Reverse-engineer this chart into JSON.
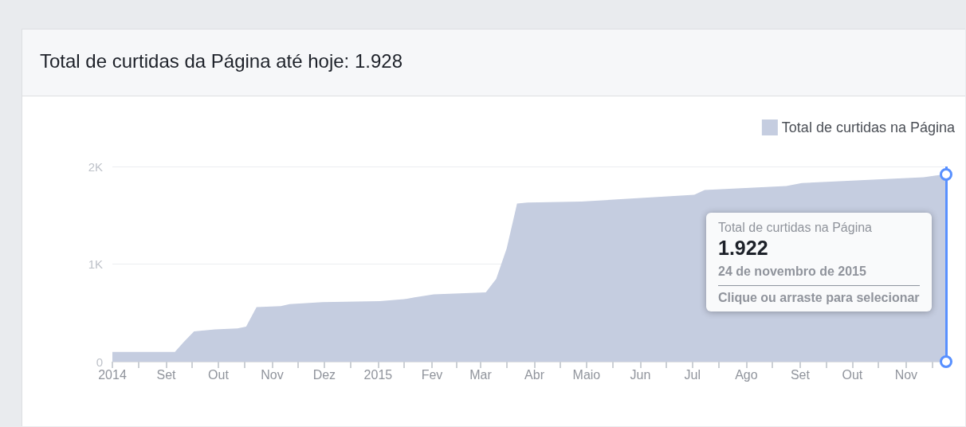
{
  "chart_data": {
    "type": "area",
    "title": "Total de curtidas da Página até hoje: 1.928",
    "x": [
      "2014-08-01",
      "2014-09-06",
      "2014-09-11",
      "2014-09-17",
      "2014-09-29",
      "2014-10-12",
      "2014-10-17",
      "2014-10-23",
      "2014-11-06",
      "2014-11-11",
      "2014-11-30",
      "2015-01-02",
      "2015-01-16",
      "2015-01-22",
      "2015-02-02",
      "2015-03-04",
      "2015-03-10",
      "2015-03-16",
      "2015-03-22",
      "2015-03-28",
      "2015-04-28",
      "2015-07-02",
      "2015-07-08",
      "2015-08-24",
      "2015-09-02",
      "2015-11-11",
      "2015-11-24"
    ],
    "series": [
      {
        "name": "Total de curtidas na Página",
        "color": "#c5cde0",
        "values": [
          100,
          100,
          200,
          310,
          330,
          340,
          360,
          560,
          570,
          590,
          610,
          620,
          640,
          660,
          690,
          710,
          850,
          1160,
          1620,
          1630,
          1640,
          1710,
          1760,
          1800,
          1830,
          1890,
          1922
        ]
      }
    ],
    "xlim": [
      "2014-08-01",
      "2015-11-24"
    ],
    "xticks": [
      {
        "value": "2014-08-01",
        "label": "2014"
      },
      {
        "value": "2014-08-16",
        "label": null
      },
      {
        "value": "2014-09-01",
        "label": "Set"
      },
      {
        "value": "2014-09-16",
        "label": null
      },
      {
        "value": "2014-10-01",
        "label": "Out"
      },
      {
        "value": "2014-10-16",
        "label": null
      },
      {
        "value": "2014-11-01",
        "label": "Nov"
      },
      {
        "value": "2014-11-16",
        "label": null
      },
      {
        "value": "2014-12-01",
        "label": "Dez"
      },
      {
        "value": "2014-12-16",
        "label": null
      },
      {
        "value": "2015-01-01",
        "label": "2015"
      },
      {
        "value": "2015-01-16",
        "label": null
      },
      {
        "value": "2015-02-01",
        "label": "Fev"
      },
      {
        "value": "2015-02-15",
        "label": null
      },
      {
        "value": "2015-03-01",
        "label": "Mar"
      },
      {
        "value": "2015-03-16",
        "label": null
      },
      {
        "value": "2015-04-01",
        "label": "Abr"
      },
      {
        "value": "2015-04-16",
        "label": null
      },
      {
        "value": "2015-05-01",
        "label": "Maio"
      },
      {
        "value": "2015-05-16",
        "label": null
      },
      {
        "value": "2015-06-01",
        "label": "Jun"
      },
      {
        "value": "2015-06-16",
        "label": null
      },
      {
        "value": "2015-07-01",
        "label": "Jul"
      },
      {
        "value": "2015-07-16",
        "label": null
      },
      {
        "value": "2015-08-01",
        "label": "Ago"
      },
      {
        "value": "2015-08-16",
        "label": null
      },
      {
        "value": "2015-09-01",
        "label": "Set"
      },
      {
        "value": "2015-09-16",
        "label": null
      },
      {
        "value": "2015-10-01",
        "label": "Out"
      },
      {
        "value": "2015-10-16",
        "label": null
      },
      {
        "value": "2015-11-01",
        "label": "Nov"
      },
      {
        "value": "2015-11-16",
        "label": null
      }
    ],
    "ylim": [
      0,
      2000
    ],
    "yticks": [
      0,
      {
        "value": 1000,
        "label": "1K"
      },
      {
        "value": 2000,
        "label": "2K"
      }
    ],
    "grid": "y",
    "legend": "top right",
    "marker": "none",
    "ref_lines": [
      {
        "axis": "x",
        "value": "2015-11-24",
        "color": "#5890ff"
      }
    ],
    "annotations": [
      "Total de curtidas na Página",
      "1.922",
      "24 de novembro de 2015",
      "Clique ou arraste para selecionar"
    ]
  }
}
